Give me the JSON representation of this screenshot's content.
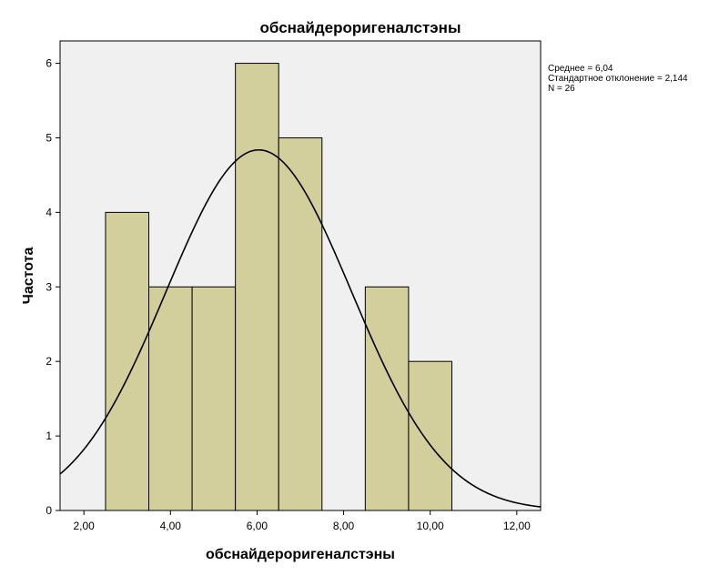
{
  "chart_data": {
    "type": "bar",
    "title": "обснайдероригеналстэны",
    "xlabel": "обснайдероригеналстэны",
    "ylabel": "Частота",
    "bins": [
      {
        "start": 2.5,
        "end": 3.5,
        "count": 4
      },
      {
        "start": 3.5,
        "end": 4.5,
        "count": 3
      },
      {
        "start": 4.5,
        "end": 5.5,
        "count": 3
      },
      {
        "start": 5.5,
        "end": 6.5,
        "count": 6
      },
      {
        "start": 6.5,
        "end": 7.5,
        "count": 5
      },
      {
        "start": 7.5,
        "end": 8.5,
        "count": 0
      },
      {
        "start": 8.5,
        "end": 9.5,
        "count": 3
      },
      {
        "start": 9.5,
        "end": 10.5,
        "count": 2
      }
    ],
    "xlim": [
      1.45,
      12.55
    ],
    "ylim": [
      0,
      6.3
    ],
    "x_ticks": [
      2,
      4,
      6,
      8,
      10,
      12
    ],
    "x_tick_labels": [
      "2,00",
      "4,00",
      "6,00",
      "8,00",
      "10,00",
      "12,00"
    ],
    "y_ticks": [
      0,
      1,
      2,
      3,
      4,
      5,
      6
    ],
    "y_tick_labels": [
      "0",
      "1",
      "2",
      "3",
      "4",
      "5",
      "6"
    ],
    "normal_curve": {
      "mean": 6.04,
      "sd": 2.144,
      "n": 26,
      "bin_width": 1
    },
    "stats": [
      "Среднее = 6,04",
      "Стандартное отклонение = 2,144",
      "N = 26"
    ],
    "colors": {
      "bar_fill": "#d3cf9c",
      "bar_stroke": "#000000",
      "plot_background": "#f0f0f0",
      "curve": "#000000"
    },
    "grid": false
  }
}
